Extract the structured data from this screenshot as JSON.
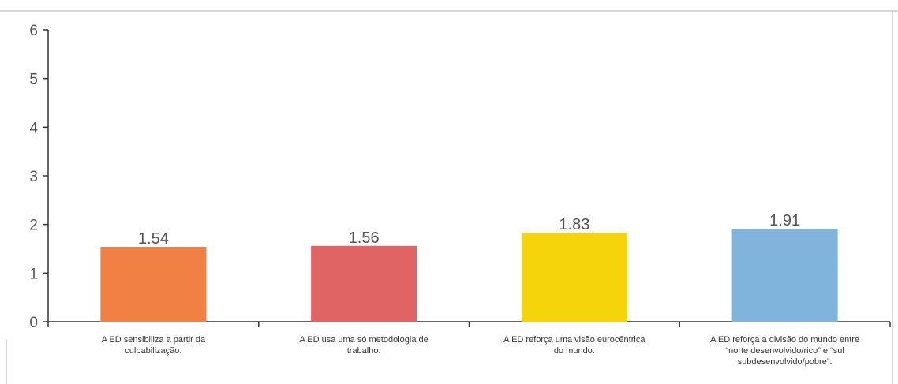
{
  "chart_data": {
    "type": "bar",
    "title": "",
    "xlabel": "",
    "ylabel": "",
    "ylim": [
      0,
      6
    ],
    "yticks": [
      0,
      1,
      2,
      3,
      4,
      5,
      6
    ],
    "grid": false,
    "legend": "none",
    "categories": [
      [
        "A ED sensibiliza a partir da",
        "culpabilização."
      ],
      [
        "A ED usa uma só metodologia de",
        "trabalho."
      ],
      [
        "A ED reforça uma visão eurocêntrica",
        "do mundo."
      ],
      [
        "A ED reforça a divisão do mundo entre",
        "“norte desenvolvido/rico” e “sul",
        "subdesenvolvido/pobre”."
      ]
    ],
    "values": [
      1.54,
      1.56,
      1.83,
      1.91
    ],
    "value_labels": [
      "1.54",
      "1.56",
      "1.83",
      "1.91"
    ],
    "colors": [
      "#f08044",
      "#e06464",
      "#f6d40c",
      "#80b4dc"
    ]
  },
  "colors": {
    "axis": "#333333",
    "frame": "#b0b0b0",
    "text": "#555555"
  }
}
